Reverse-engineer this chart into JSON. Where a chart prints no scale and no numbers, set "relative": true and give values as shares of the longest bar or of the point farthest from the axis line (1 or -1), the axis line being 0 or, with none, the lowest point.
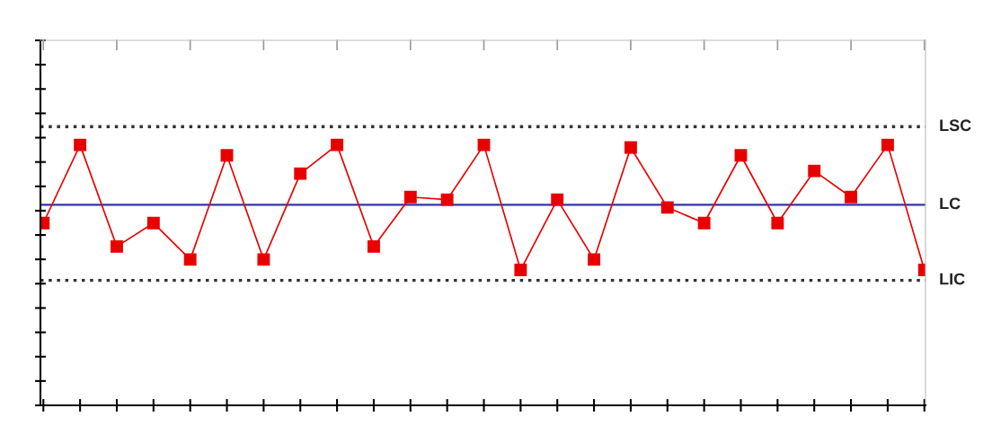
{
  "chart_data": {
    "type": "line",
    "relative": true,
    "grid": false,
    "legend": false,
    "marker": "square",
    "line_style": "solid",
    "categories": [
      null,
      null,
      null,
      null,
      null,
      null,
      null,
      null,
      null,
      null,
      null,
      null,
      null,
      null,
      null,
      null,
      null,
      null,
      null,
      null,
      null,
      null,
      null,
      null,
      null
    ],
    "series": [
      {
        "color": "#e80000",
        "values": [
          0.7,
          1,
          0.61,
          0.7,
          0.56,
          0.96,
          0.56,
          0.89,
          1,
          0.61,
          0.8,
          0.79,
          1,
          0.52,
          0.79,
          0.56,
          0.99,
          0.76,
          0.7,
          0.96,
          0.7,
          0.9,
          0.8,
          1,
          0.52
        ]
      }
    ],
    "ref_lines": [
      {
        "axis": "y",
        "value": 1.07,
        "label": "LSC",
        "color": "#333333",
        "line_style": "dotted"
      },
      {
        "axis": "y",
        "value": 0.77,
        "label": "LC",
        "color": "#3333aa",
        "line_style": "solid"
      },
      {
        "axis": "y",
        "value": 0.48,
        "label": "LIC",
        "color": "#333333",
        "line_style": "dotted"
      }
    ]
  }
}
